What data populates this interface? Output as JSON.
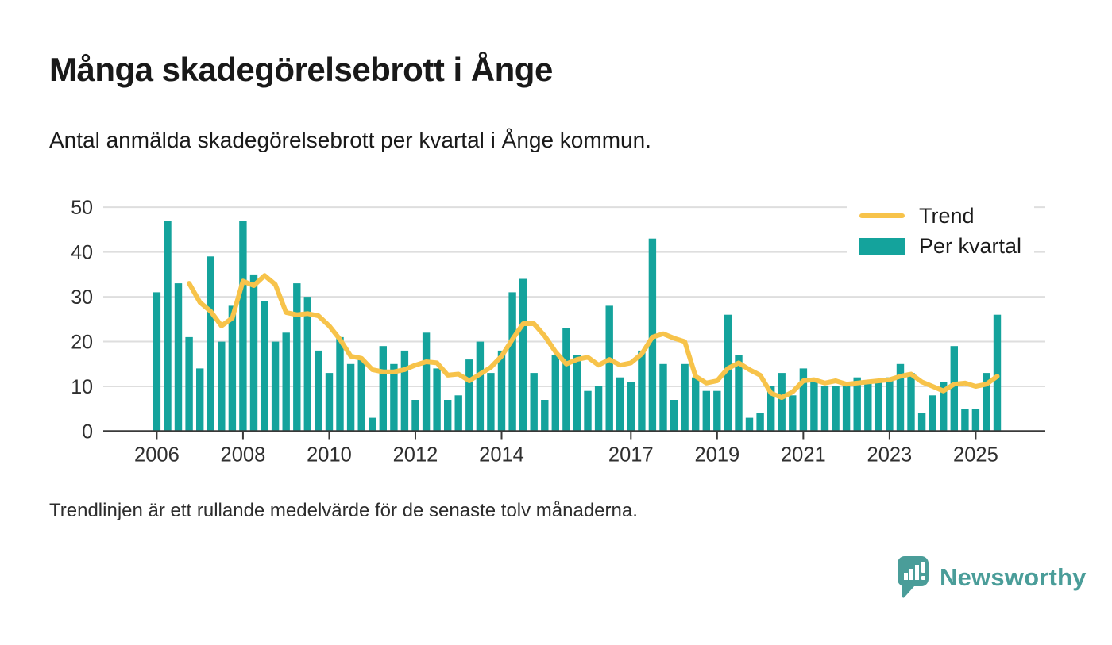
{
  "header": {
    "title": "Många skadegörelsebrott i Ånge",
    "subtitle": "Antal anmälda skadegörelsebrott per kvartal i Ånge kommun."
  },
  "legend": {
    "items": [
      {
        "label": "Trend"
      },
      {
        "label": "Per kvartal"
      }
    ]
  },
  "footer": {
    "note": "Trendlinjen är ett rullande medelvärde för de senaste tolv månaderna."
  },
  "brand": {
    "name": "Newsworthy"
  },
  "colors": {
    "bar": "#14a39c",
    "trend": "#f7c34a",
    "axis": "#3a3a3a",
    "grid": "#dedede",
    "tick_text": "#2f2f2f",
    "brand_teal": "#4a9d99"
  },
  "chart_data": {
    "type": "bar",
    "title": "Många skadegörelsebrott i Ånge",
    "subtitle": "Antal anmälda skadegörelsebrott per kvartal i Ånge kommun.",
    "xlabel": "",
    "ylabel": "",
    "ylim": [
      0,
      50
    ],
    "yticks": [
      0,
      10,
      20,
      30,
      40,
      50
    ],
    "grid": "horizontal",
    "legend_position": "top-right",
    "note": "Trendlinjen är ett rullande medelvärde för de senaste tolv månaderna.",
    "categories": [
      "2006 Q1",
      "2006 Q2",
      "2006 Q3",
      "2006 Q4",
      "2007 Q1",
      "2007 Q2",
      "2007 Q3",
      "2007 Q4",
      "2008 Q1",
      "2008 Q2",
      "2008 Q3",
      "2008 Q4",
      "2009 Q1",
      "2009 Q2",
      "2009 Q3",
      "2009 Q4",
      "2010 Q1",
      "2010 Q2",
      "2010 Q3",
      "2010 Q4",
      "2011 Q1",
      "2011 Q2",
      "2011 Q3",
      "2011 Q4",
      "2012 Q1",
      "2012 Q2",
      "2012 Q3",
      "2012 Q4",
      "2013 Q1",
      "2013 Q2",
      "2013 Q3",
      "2013 Q4",
      "2014 Q1",
      "2014 Q2",
      "2014 Q3",
      "2014 Q4",
      "2015 Q1",
      "2015 Q2",
      "2015 Q3",
      "2015 Q4",
      "2016 Q1",
      "2016 Q2",
      "2016 Q3",
      "2016 Q4",
      "2017 Q1",
      "2017 Q2",
      "2017 Q3",
      "2017 Q4",
      "2018 Q1",
      "2018 Q2",
      "2018 Q3",
      "2018 Q4",
      "2019 Q1",
      "2019 Q2",
      "2019 Q3",
      "2019 Q4",
      "2020 Q1",
      "2020 Q2",
      "2020 Q3",
      "2020 Q4",
      "2021 Q1",
      "2021 Q2",
      "2021 Q3",
      "2021 Q4",
      "2022 Q1",
      "2022 Q2",
      "2022 Q3",
      "2022 Q4",
      "2023 Q1",
      "2023 Q2",
      "2023 Q3",
      "2023 Q4",
      "2024 Q1",
      "2024 Q2",
      "2024 Q3",
      "2024 Q4",
      "2025 Q1",
      "2025 Q2",
      "2025 Q3"
    ],
    "series": [
      {
        "name": "Per kvartal",
        "type": "bar",
        "color": "#14a39c",
        "values": [
          31,
          47,
          33,
          21,
          14,
          39,
          20,
          28,
          47,
          35,
          29,
          20,
          22,
          33,
          30,
          18,
          13,
          21,
          15,
          16,
          3,
          19,
          15,
          18,
          7,
          22,
          14,
          7,
          8,
          16,
          20,
          13,
          18,
          31,
          34,
          13,
          7,
          17,
          23,
          17,
          9,
          10,
          28,
          12,
          11,
          18,
          43,
          15,
          7,
          15,
          12,
          9,
          9,
          26,
          17,
          3,
          4,
          10,
          13,
          8,
          14,
          11,
          10,
          10,
          11,
          12,
          11,
          11,
          12,
          15,
          13,
          4,
          8,
          11,
          19,
          5,
          5,
          13,
          26
        ]
      },
      {
        "name": "Trend",
        "type": "line",
        "color": "#f7c34a",
        "values": [
          null,
          null,
          null,
          33,
          28.75,
          26.75,
          23.5,
          25.25,
          33.5,
          32.5,
          34.75,
          32.75,
          26.5,
          26,
          26.25,
          25.75,
          23.5,
          20.5,
          16.75,
          16.25,
          13.75,
          13.25,
          13.25,
          13.75,
          14.75,
          15.5,
          15.25,
          12.5,
          12.75,
          11.25,
          12.75,
          14.25,
          16.75,
          20.5,
          24,
          24,
          21.25,
          17.75,
          15,
          16,
          16.5,
          14.75,
          16,
          14.75,
          15.25,
          17.25,
          21,
          21.75,
          20.75,
          20,
          12.25,
          10.75,
          11.25,
          14,
          15.25,
          13.75,
          12.5,
          8.5,
          7.5,
          8.75,
          11.25,
          11.5,
          10.75,
          11.25,
          10.5,
          10.75,
          11,
          11.25,
          11.5,
          12.25,
          12.75,
          11,
          10,
          9,
          10.5,
          10.75,
          10,
          10.5,
          12.25
        ]
      }
    ],
    "xticks": [
      {
        "label": "2006",
        "index": 0
      },
      {
        "label": "2008",
        "index": 8
      },
      {
        "label": "2010",
        "index": 16
      },
      {
        "label": "2012",
        "index": 24
      },
      {
        "label": "2014",
        "index": 32
      },
      {
        "label": "2017",
        "index": 44
      },
      {
        "label": "2019",
        "index": 52
      },
      {
        "label": "2021",
        "index": 60
      },
      {
        "label": "2023",
        "index": 68
      },
      {
        "label": "2025",
        "index": 76
      }
    ]
  }
}
